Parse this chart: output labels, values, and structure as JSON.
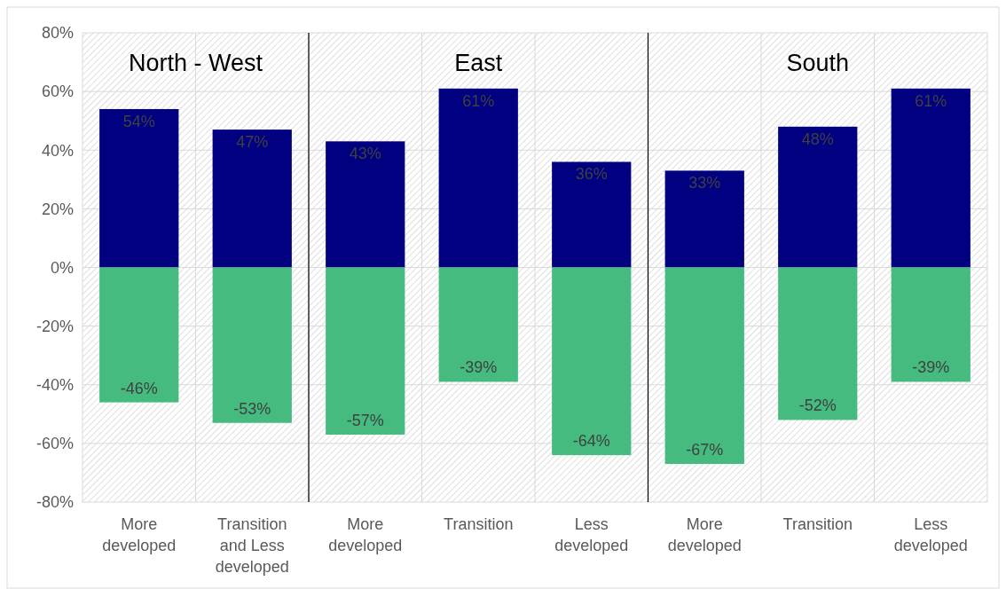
{
  "chart_data": {
    "type": "bar",
    "stacked": true,
    "categories": [
      "More developed",
      "Transition and Less developed",
      "More developed",
      "Transition",
      "Less developed",
      "More developed",
      "Transition",
      "Less developed"
    ],
    "series": [
      {
        "color": "#000080",
        "values": [
          54,
          47,
          43,
          61,
          36,
          33,
          48,
          61
        ],
        "value_labels": [
          "54%",
          "47%",
          "43%",
          "61%",
          "36%",
          "33%",
          "48%",
          "61%"
        ]
      },
      {
        "color": "#45bb80",
        "values": [
          -46,
          -53,
          -57,
          -39,
          -64,
          -67,
          -52,
          -39
        ],
        "value_labels": [
          "-46%",
          "-53%",
          "-57%",
          "-39%",
          "-64%",
          "-67%",
          "-52%",
          "-39%"
        ]
      }
    ],
    "ylim": [
      -80,
      80
    ],
    "yticks": [
      {
        "value": -80,
        "label": "-80%"
      },
      {
        "value": -60,
        "label": "-60%"
      },
      {
        "value": -40,
        "label": "-40%"
      },
      {
        "value": -20,
        "label": "-20%"
      },
      {
        "value": 0,
        "label": "0%"
      },
      {
        "value": 20,
        "label": "20%"
      },
      {
        "value": 40,
        "label": "40%"
      },
      {
        "value": 60,
        "label": "60%"
      },
      {
        "value": 80,
        "label": "80%"
      }
    ],
    "grid": true,
    "annotations": [
      "North - West",
      "East",
      "South"
    ]
  }
}
